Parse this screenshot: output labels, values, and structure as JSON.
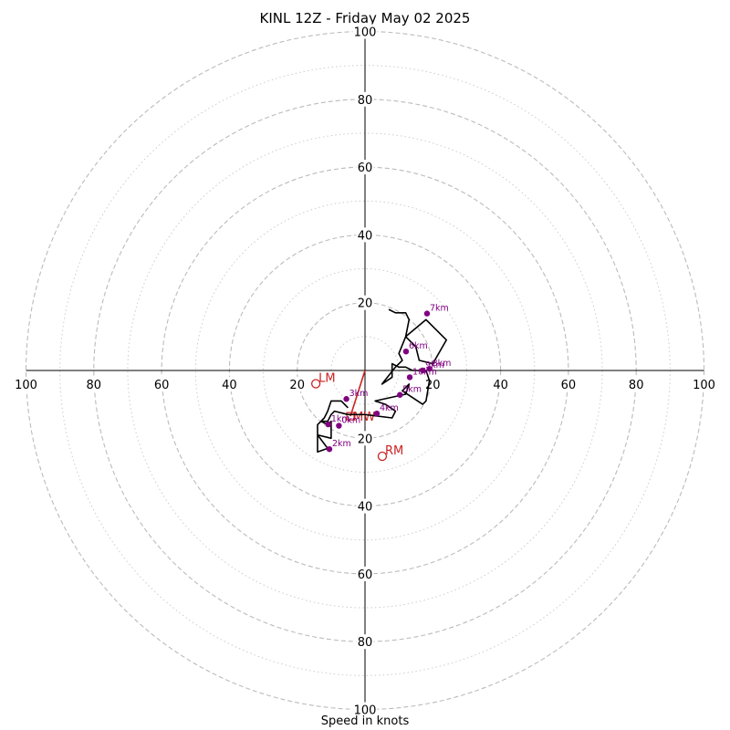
{
  "chart_data": {
    "type": "hodograph",
    "title": "KINL 12Z - Friday May 02 2025",
    "xlabel": "Speed in knots",
    "xlim": [
      -100,
      100
    ],
    "ylim": [
      -100,
      100
    ],
    "ring_labels": [
      "20",
      "40",
      "60",
      "80",
      "100"
    ],
    "major_rings": [
      20,
      40,
      60,
      80,
      100
    ],
    "minor_rings": [
      10,
      30,
      50,
      70,
      90
    ],
    "grid": true,
    "colors": {
      "trace": "#000000",
      "markers": "#800080",
      "motion": "#cc2222",
      "grid": "#bbbbbb",
      "axes": "#000000"
    },
    "trace": {
      "u": [
        -5,
        -7,
        -10,
        -11,
        -12,
        -13,
        -11,
        -10,
        -10,
        -14,
        -14,
        -11,
        -14,
        -14,
        -12,
        -13,
        -11,
        -10,
        -9,
        -5,
        0,
        8,
        9,
        6,
        6,
        3,
        12,
        13,
        11,
        17,
        18,
        19,
        18,
        14,
        12,
        10,
        8,
        8,
        5,
        9,
        11,
        10,
        12,
        18,
        24,
        20,
        16,
        15,
        12,
        13,
        12,
        9,
        7
      ],
      "v": [
        -11,
        -9,
        -9,
        -12,
        -14,
        -15,
        -16,
        -15,
        -20,
        -19,
        -24,
        -23,
        -19,
        -16,
        -14,
        -15,
        -15,
        -13,
        -12,
        -13,
        -13,
        -14,
        -12,
        -10,
        -10,
        -9,
        -7,
        -4,
        -6,
        -10,
        -9,
        -3,
        0,
        0,
        1,
        1,
        2,
        -2,
        -4,
        1,
        3,
        5,
        10,
        15,
        9,
        2,
        3,
        7,
        10,
        15,
        17,
        17,
        18
      ]
    },
    "height_markers": [
      {
        "label": "2km",
        "u": -10.5,
        "v": -23.2
      },
      {
        "label": "3km",
        "u": -5.5,
        "v": -8.4
      },
      {
        "label": "4km",
        "u": 3.5,
        "v": -12.7
      },
      {
        "label": "5km",
        "u": 10.3,
        "v": -7.2
      },
      {
        "label": "6km",
        "u": 12.1,
        "v": 5.6
      },
      {
        "label": "7km",
        "u": 18.3,
        "v": 16.8
      },
      {
        "label": "8km",
        "u": 19.0,
        "v": 0.5
      },
      {
        "label": "9km",
        "u": 17.0,
        "v": 0.0
      },
      {
        "label": "10km",
        "u": 13.2,
        "v": -2.0
      },
      {
        "label": "1km",
        "u": -10.8,
        "v": -15.9
      },
      {
        "label": "0km",
        "u": -7.7,
        "v": -16.3
      }
    ],
    "storm_motion": [
      {
        "label": "LM",
        "u": -14.5,
        "v": -3.9
      },
      {
        "label": "RM",
        "u": 5.1,
        "v": -25.3
      },
      {
        "label": "MW",
        "u": -4.3,
        "v": -13.5
      }
    ]
  }
}
